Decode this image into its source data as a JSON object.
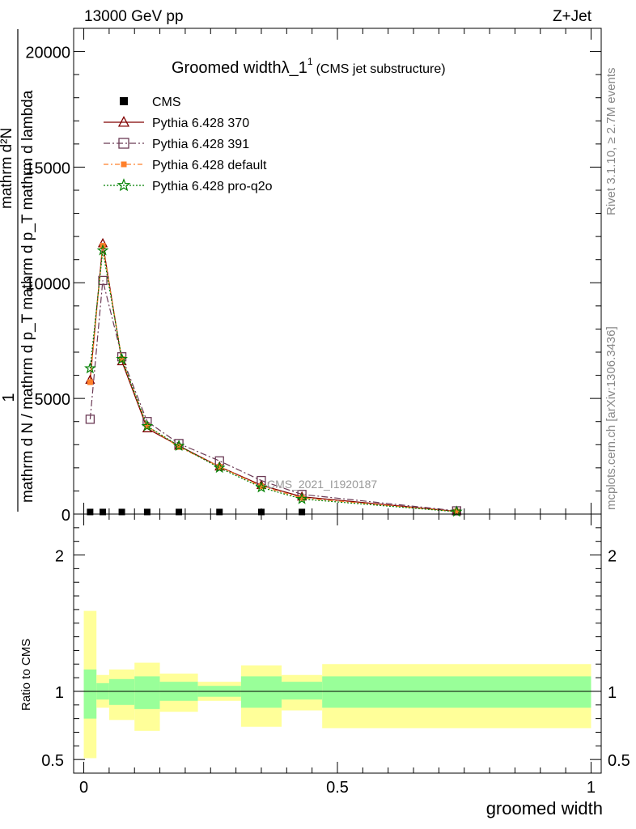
{
  "header": {
    "energy_label": "13000 GeV pp",
    "process_label": "Z+Jet"
  },
  "side_labels": {
    "rivet": "Rivet 3.1.10, ≥ 2.7M events",
    "mcplots": "mcplots.cern.ch [arXiv:1306.3436]"
  },
  "chart_data": [
    {
      "type": "line",
      "title": "Groomed widthλ_1",
      "title_sup": "1",
      "subtitle": "(CMS jet substructure)",
      "ylabel_num": "1",
      "ylabel_den": "mathrm d N / mathrm d p_T mathrm d p_T mathrm d lambda",
      "ylabel_top": "mathrm d²N",
      "watermark": "CMS_2021_I1920187",
      "xlim": [
        -0.02,
        1.02
      ],
      "ylim": [
        0,
        21000
      ],
      "yticks": [
        0,
        5000,
        10000,
        15000,
        20000
      ],
      "ytick_labels": [
        "0",
        "5000",
        "10000",
        "15000",
        "20000"
      ],
      "legend_position": "top-left",
      "bins": [
        {
          "lo": 0.0,
          "hi": 0.025,
          "x": 0.0125
        },
        {
          "lo": 0.025,
          "hi": 0.05,
          "x": 0.0375
        },
        {
          "lo": 0.05,
          "hi": 0.1,
          "x": 0.075
        },
        {
          "lo": 0.1,
          "hi": 0.15,
          "x": 0.125
        },
        {
          "lo": 0.15,
          "hi": 0.225,
          "x": 0.1875
        },
        {
          "lo": 0.225,
          "hi": 0.31,
          "x": 0.2675
        },
        {
          "lo": 0.31,
          "hi": 0.39,
          "x": 0.35
        },
        {
          "lo": 0.39,
          "hi": 0.47,
          "x": 0.43
        },
        {
          "lo": 0.47,
          "hi": 1.0,
          "x": 0.735
        }
      ],
      "series": [
        {
          "name": "CMS",
          "marker": "filled-square",
          "color": "#000000",
          "dash": "",
          "values": [
            20,
            20,
            20,
            20,
            20,
            20,
            20,
            20,
            20
          ]
        },
        {
          "name": "Pythia 6.428 370",
          "marker": "open-triangle",
          "color": "#800000",
          "dash": "",
          "values": [
            5800,
            11700,
            6600,
            3700,
            2950,
            2050,
            1250,
            750,
            120
          ]
        },
        {
          "name": "Pythia 6.428 391",
          "marker": "open-square",
          "color": "#6b3a55",
          "dash": "8,3,2,3",
          "values": [
            4100,
            10100,
            6800,
            4000,
            3050,
            2300,
            1450,
            850,
            140
          ]
        },
        {
          "name": "Pythia 6.428 default",
          "marker": "filled-square",
          "color": "#ff7f2a",
          "dash": "6,3,2,3",
          "values": [
            5700,
            11600,
            6700,
            3800,
            2900,
            2050,
            1200,
            700,
            110
          ]
        },
        {
          "name": "Pythia 6.428 pro-q2o",
          "marker": "star",
          "color": "#008000",
          "dash": "2,2",
          "values": [
            6300,
            11400,
            6700,
            3800,
            2950,
            2000,
            1150,
            650,
            100
          ]
        }
      ]
    },
    {
      "type": "area",
      "ylabel": "Ratio to CMS",
      "xlabel": "groomed width",
      "xlim": [
        -0.02,
        1.02
      ],
      "ylim": [
        0.4,
        2.3
      ],
      "yticks": [
        0.5,
        1,
        2
      ],
      "ytick_labels": [
        "0.5",
        "1",
        "2"
      ],
      "xticks": [
        0,
        0.5,
        1
      ],
      "xtick_labels": [
        "0",
        "0.5",
        "1"
      ],
      "band_colors": {
        "inner": "#99ff99",
        "outer": "#ffff99"
      },
      "bands": [
        {
          "lo": 0.0,
          "hi": 0.025,
          "inner": [
            0.8,
            1.16
          ],
          "outer": [
            0.51,
            1.59
          ]
        },
        {
          "lo": 0.025,
          "hi": 0.05,
          "inner": [
            0.94,
            1.06
          ],
          "outer": [
            0.88,
            1.12
          ]
        },
        {
          "lo": 0.05,
          "hi": 0.1,
          "inner": [
            0.9,
            1.09
          ],
          "outer": [
            0.79,
            1.16
          ]
        },
        {
          "lo": 0.1,
          "hi": 0.15,
          "inner": [
            0.87,
            1.11
          ],
          "outer": [
            0.71,
            1.21
          ]
        },
        {
          "lo": 0.15,
          "hi": 0.225,
          "inner": [
            0.93,
            1.07
          ],
          "outer": [
            0.85,
            1.13
          ]
        },
        {
          "lo": 0.225,
          "hi": 0.31,
          "inner": [
            0.96,
            1.04
          ],
          "outer": [
            0.93,
            1.07
          ]
        },
        {
          "lo": 0.31,
          "hi": 0.39,
          "inner": [
            0.88,
            1.11
          ],
          "outer": [
            0.74,
            1.19
          ]
        },
        {
          "lo": 0.39,
          "hi": 0.47,
          "inner": [
            0.94,
            1.07
          ],
          "outer": [
            0.86,
            1.12
          ]
        },
        {
          "lo": 0.47,
          "hi": 1.0,
          "inner": [
            0.88,
            1.11
          ],
          "outer": [
            0.73,
            1.2
          ]
        }
      ],
      "reference_line": 1
    }
  ]
}
